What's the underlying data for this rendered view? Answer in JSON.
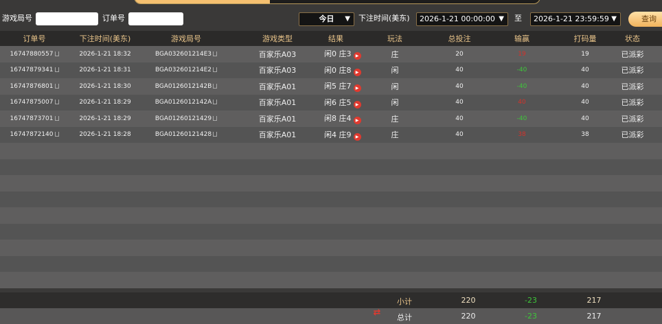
{
  "filters": {
    "game_round_label": "游戏局号",
    "game_round_value": "",
    "order_label": "订单号",
    "order_value": "",
    "period": "今日",
    "time_label": "下注时间(美东)",
    "start": "2026-1-21 00:00:00",
    "to_label": "至",
    "end": "2026-1-21 23:59:59",
    "query": "查询"
  },
  "table": {
    "headers": [
      "订单号",
      "下注时间(美东)",
      "游戏局号",
      "游戏类型",
      "结果",
      "玩法",
      "总投注",
      "输赢",
      "打码量",
      "状态"
    ],
    "rows": [
      {
        "order": "16747880557",
        "time": "2026-1-21 18:32",
        "round": "BGA032601214E3",
        "type": "百家乐A03",
        "result": "闲0 庄3",
        "play": "庄",
        "bet": "20",
        "win": "19",
        "win_color": "red",
        "valid": "19",
        "status": "已派彩"
      },
      {
        "order": "16747879341",
        "time": "2026-1-21 18:31",
        "round": "BGA032601214E2",
        "type": "百家乐A03",
        "result": "闲0 庄8",
        "play": "闲",
        "bet": "40",
        "win": "-40",
        "win_color": "green",
        "valid": "40",
        "status": "已派彩"
      },
      {
        "order": "16747876801",
        "time": "2026-1-21 18:30",
        "round": "BGA0126012142B",
        "type": "百家乐A01",
        "result": "闲5 庄7",
        "play": "闲",
        "bet": "40",
        "win": "-40",
        "win_color": "green",
        "valid": "40",
        "status": "已派彩"
      },
      {
        "order": "16747875007",
        "time": "2026-1-21 18:29",
        "round": "BGA0126012142A",
        "type": "百家乐A01",
        "result": "闲6 庄5",
        "play": "闲",
        "bet": "40",
        "win": "40",
        "win_color": "red",
        "valid": "40",
        "status": "已派彩"
      },
      {
        "order": "16747873701",
        "time": "2026-1-21 18:29",
        "round": "BGA01260121429",
        "type": "百家乐A01",
        "result": "闲8 庄4",
        "play": "庄",
        "bet": "40",
        "win": "-40",
        "win_color": "green",
        "valid": "40",
        "status": "已派彩"
      },
      {
        "order": "16747872140",
        "time": "2026-1-21 18:28",
        "round": "BGA01260121428",
        "type": "百家乐A01",
        "result": "闲4 庄9",
        "play": "庄",
        "bet": "40",
        "win": "38",
        "win_color": "red",
        "valid": "38",
        "status": "已派彩"
      }
    ]
  },
  "subtotal": {
    "label": "小计",
    "bet": "220",
    "win": "-23",
    "valid": "217"
  },
  "total": {
    "label": "总计",
    "bet": "220",
    "win": "-23",
    "valid": "217"
  },
  "colors": {
    "accent": "#f5c070",
    "win": "#d4322a",
    "loss": "#3ec63a"
  }
}
